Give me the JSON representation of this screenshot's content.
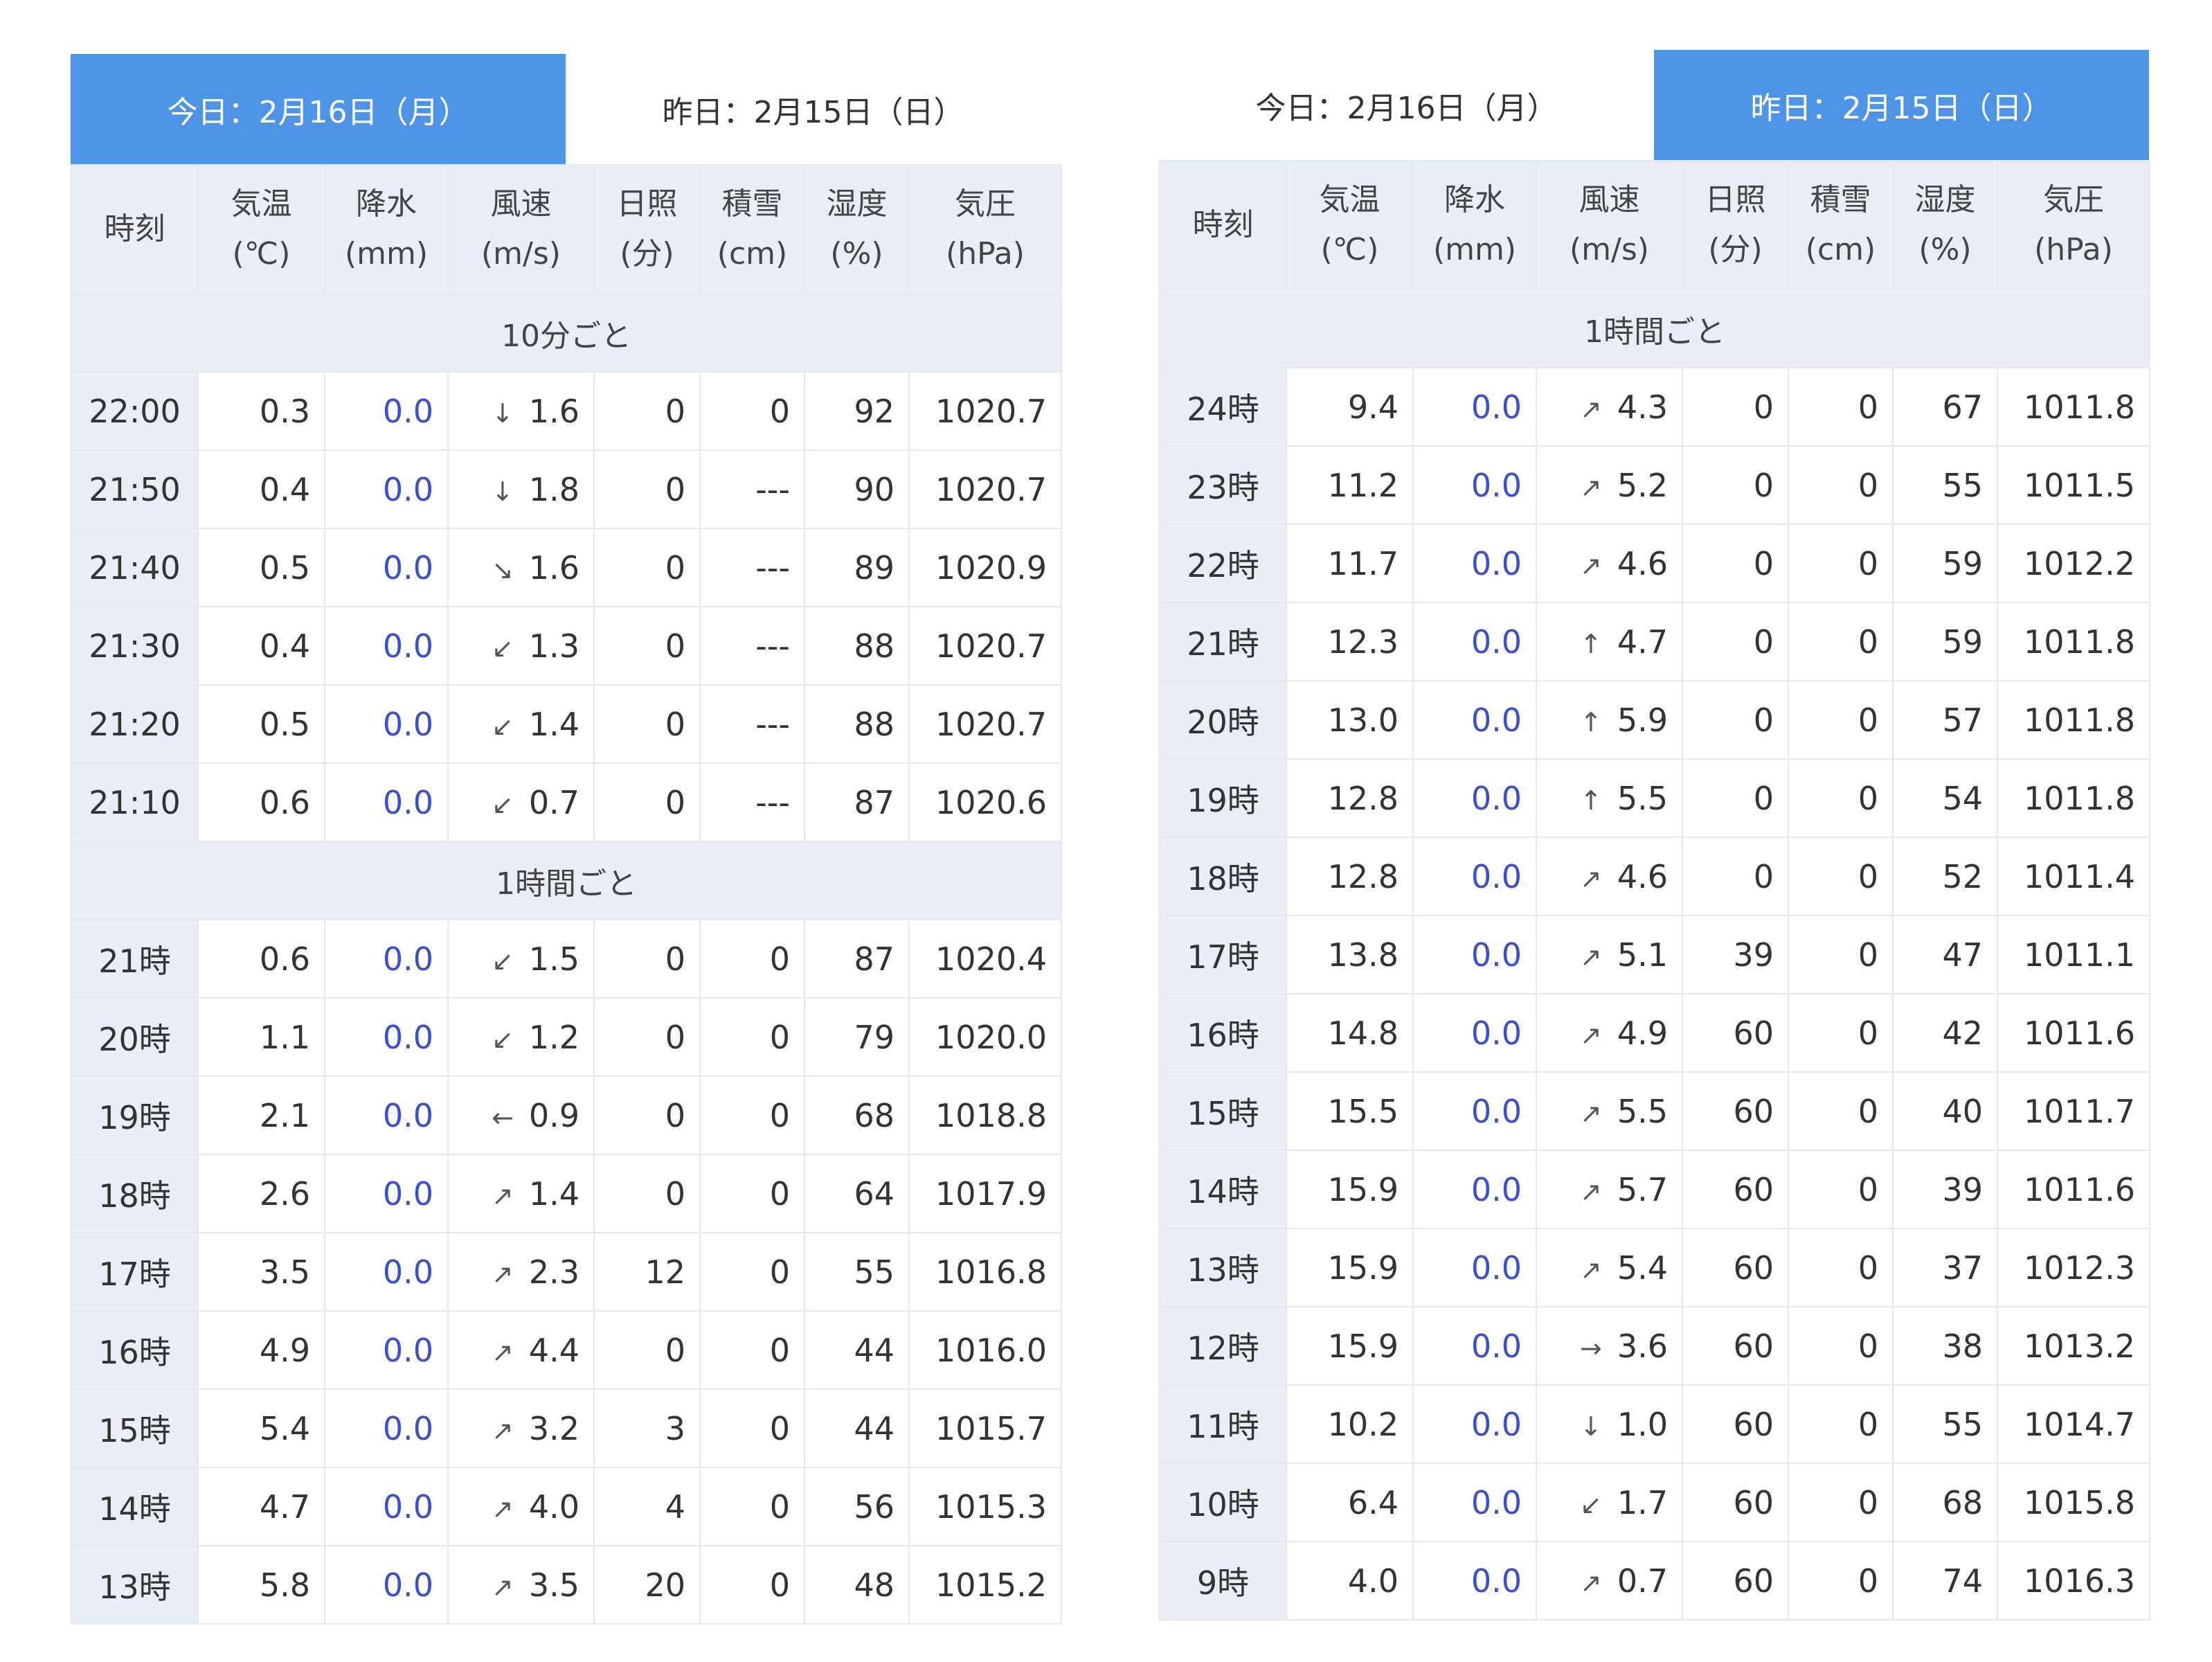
{
  "tabs": {
    "today": "今日：2月16日（月）",
    "yesterday": "昨日：2月15日（日）"
  },
  "headers": {
    "time": "時刻",
    "temp": "気温",
    "temp_unit": "(℃)",
    "precip": "降水",
    "precip_unit": "(mm)",
    "wind": "風速",
    "wind_unit": "(m/s)",
    "sun": "日照",
    "sun_unit": "(分)",
    "snow": "積雪",
    "snow_unit": "(cm)",
    "humid": "湿度",
    "humid_unit": "(%)",
    "press": "気圧",
    "press_unit": "(hPa)"
  },
  "sections": {
    "ten_min": "10分ごと",
    "hourly": "1時間ごと"
  },
  "left": {
    "ten_min": [
      {
        "time": "22:00",
        "temp": "0.3",
        "precip": "0.0",
        "arrow": "wind-arrow-north-icon",
        "wind": "1.6",
        "sun": "0",
        "snow": "0",
        "humid": "92",
        "press": "1020.7"
      },
      {
        "time": "21:50",
        "temp": "0.4",
        "precip": "0.0",
        "arrow": "wind-arrow-north-icon",
        "wind": "1.8",
        "sun": "0",
        "snow": "---",
        "humid": "90",
        "press": "1020.7"
      },
      {
        "time": "21:40",
        "temp": "0.5",
        "precip": "0.0",
        "arrow": "wind-arrow-northwest-icon",
        "wind": "1.6",
        "sun": "0",
        "snow": "---",
        "humid": "89",
        "press": "1020.9"
      },
      {
        "time": "21:30",
        "temp": "0.4",
        "precip": "0.0",
        "arrow": "wind-arrow-northeast-icon",
        "wind": "1.3",
        "sun": "0",
        "snow": "---",
        "humid": "88",
        "press": "1020.7"
      },
      {
        "time": "21:20",
        "temp": "0.5",
        "precip": "0.0",
        "arrow": "wind-arrow-northeast-icon",
        "wind": "1.4",
        "sun": "0",
        "snow": "---",
        "humid": "88",
        "press": "1020.7"
      },
      {
        "time": "21:10",
        "temp": "0.6",
        "precip": "0.0",
        "arrow": "wind-arrow-northeast-icon",
        "wind": "0.7",
        "sun": "0",
        "snow": "---",
        "humid": "87",
        "press": "1020.6"
      }
    ],
    "hourly": [
      {
        "time": "21時",
        "temp": "0.6",
        "precip": "0.0",
        "arrow": "wind-arrow-northeast-icon",
        "wind": "1.5",
        "sun": "0",
        "snow": "0",
        "humid": "87",
        "press": "1020.4"
      },
      {
        "time": "20時",
        "temp": "1.1",
        "precip": "0.0",
        "arrow": "wind-arrow-northeast-icon",
        "wind": "1.2",
        "sun": "0",
        "snow": "0",
        "humid": "79",
        "press": "1020.0"
      },
      {
        "time": "19時",
        "temp": "2.1",
        "precip": "0.0",
        "arrow": "wind-arrow-east-icon",
        "wind": "0.9",
        "sun": "0",
        "snow": "0",
        "humid": "68",
        "press": "1018.8"
      },
      {
        "time": "18時",
        "temp": "2.6",
        "precip": "0.0",
        "arrow": "wind-arrow-southwest-icon",
        "wind": "1.4",
        "sun": "0",
        "snow": "0",
        "humid": "64",
        "press": "1017.9"
      },
      {
        "time": "17時",
        "temp": "3.5",
        "precip": "0.0",
        "arrow": "wind-arrow-southwest-icon",
        "wind": "2.3",
        "sun": "12",
        "snow": "0",
        "humid": "55",
        "press": "1016.8"
      },
      {
        "time": "16時",
        "temp": "4.9",
        "precip": "0.0",
        "arrow": "wind-arrow-southwest-icon",
        "wind": "4.4",
        "sun": "0",
        "snow": "0",
        "humid": "44",
        "press": "1016.0"
      },
      {
        "time": "15時",
        "temp": "5.4",
        "precip": "0.0",
        "arrow": "wind-arrow-southwest-icon",
        "wind": "3.2",
        "sun": "3",
        "snow": "0",
        "humid": "44",
        "press": "1015.7"
      },
      {
        "time": "14時",
        "temp": "4.7",
        "precip": "0.0",
        "arrow": "wind-arrow-southwest-icon",
        "wind": "4.0",
        "sun": "4",
        "snow": "0",
        "humid": "56",
        "press": "1015.3"
      },
      {
        "time": "13時",
        "temp": "5.8",
        "precip": "0.0",
        "arrow": "wind-arrow-southwest-icon",
        "wind": "3.5",
        "sun": "20",
        "snow": "0",
        "humid": "48",
        "press": "1015.2"
      }
    ]
  },
  "right": {
    "hourly": [
      {
        "time": "24時",
        "temp": "9.4",
        "precip": "0.0",
        "arrow": "wind-arrow-southwest-icon",
        "wind": "4.3",
        "sun": "0",
        "snow": "0",
        "humid": "67",
        "press": "1011.8"
      },
      {
        "time": "23時",
        "temp": "11.2",
        "precip": "0.0",
        "arrow": "wind-arrow-southwest-icon",
        "wind": "5.2",
        "sun": "0",
        "snow": "0",
        "humid": "55",
        "press": "1011.5"
      },
      {
        "time": "22時",
        "temp": "11.7",
        "precip": "0.0",
        "arrow": "wind-arrow-southwest-icon",
        "wind": "4.6",
        "sun": "0",
        "snow": "0",
        "humid": "59",
        "press": "1012.2"
      },
      {
        "time": "21時",
        "temp": "12.3",
        "precip": "0.0",
        "arrow": "wind-arrow-south-icon",
        "wind": "4.7",
        "sun": "0",
        "snow": "0",
        "humid": "59",
        "press": "1011.8"
      },
      {
        "time": "20時",
        "temp": "13.0",
        "precip": "0.0",
        "arrow": "wind-arrow-south-icon",
        "wind": "5.9",
        "sun": "0",
        "snow": "0",
        "humid": "57",
        "press": "1011.8"
      },
      {
        "time": "19時",
        "temp": "12.8",
        "precip": "0.0",
        "arrow": "wind-arrow-south-icon",
        "wind": "5.5",
        "sun": "0",
        "snow": "0",
        "humid": "54",
        "press": "1011.8"
      },
      {
        "time": "18時",
        "temp": "12.8",
        "precip": "0.0",
        "arrow": "wind-arrow-southwest-icon",
        "wind": "4.6",
        "sun": "0",
        "snow": "0",
        "humid": "52",
        "press": "1011.4"
      },
      {
        "time": "17時",
        "temp": "13.8",
        "precip": "0.0",
        "arrow": "wind-arrow-southwest-icon",
        "wind": "5.1",
        "sun": "39",
        "snow": "0",
        "humid": "47",
        "press": "1011.1"
      },
      {
        "time": "16時",
        "temp": "14.8",
        "precip": "0.0",
        "arrow": "wind-arrow-southwest-icon",
        "wind": "4.9",
        "sun": "60",
        "snow": "0",
        "humid": "42",
        "press": "1011.6"
      },
      {
        "time": "15時",
        "temp": "15.5",
        "precip": "0.0",
        "arrow": "wind-arrow-southwest-icon",
        "wind": "5.5",
        "sun": "60",
        "snow": "0",
        "humid": "40",
        "press": "1011.7"
      },
      {
        "time": "14時",
        "temp": "15.9",
        "precip": "0.0",
        "arrow": "wind-arrow-southwest-icon",
        "wind": "5.7",
        "sun": "60",
        "snow": "0",
        "humid": "39",
        "press": "1011.6"
      },
      {
        "time": "13時",
        "temp": "15.9",
        "precip": "0.0",
        "arrow": "wind-arrow-southwest-icon",
        "wind": "5.4",
        "sun": "60",
        "snow": "0",
        "humid": "37",
        "press": "1012.3"
      },
      {
        "time": "12時",
        "temp": "15.9",
        "precip": "0.0",
        "arrow": "wind-arrow-west-icon",
        "wind": "3.6",
        "sun": "60",
        "snow": "0",
        "humid": "38",
        "press": "1013.2"
      },
      {
        "time": "11時",
        "temp": "10.2",
        "precip": "0.0",
        "arrow": "wind-arrow-north-icon",
        "wind": "1.0",
        "sun": "60",
        "snow": "0",
        "humid": "55",
        "press": "1014.7"
      },
      {
        "time": "10時",
        "temp": "6.4",
        "precip": "0.0",
        "arrow": "wind-arrow-northeast-icon",
        "wind": "1.7",
        "sun": "60",
        "snow": "0",
        "humid": "68",
        "press": "1015.8"
      },
      {
        "time": "9時",
        "temp": "4.0",
        "precip": "0.0",
        "arrow": "wind-arrow-southwest-icon",
        "wind": "0.7",
        "sun": "60",
        "snow": "0",
        "humid": "74",
        "press": "1016.3"
      }
    ]
  }
}
